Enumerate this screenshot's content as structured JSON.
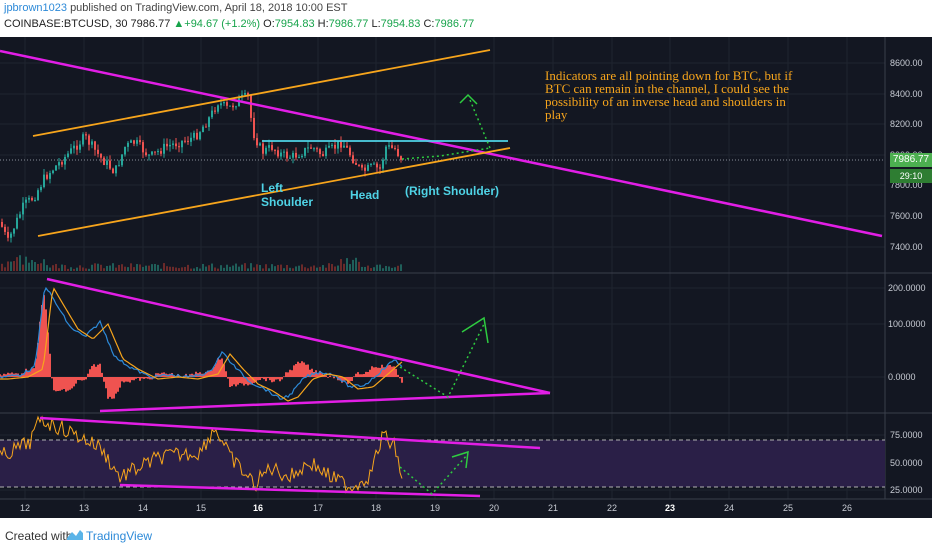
{
  "header": {
    "author": "jpbrown1023",
    "published": "published on TradingView.com, April 18, 2018 10:00 EST"
  },
  "ticker": {
    "symbol": "COINBASE:BTCUSD, 30",
    "last": "7986.77",
    "change": "+94.67 (+1.2%)",
    "open_label": "O:",
    "open": "7954.83",
    "high_label": "H:",
    "high": "7986.77",
    "low_label": "L:",
    "low": "7954.83",
    "close_label": "C:",
    "close": "7986.77"
  },
  "annotations": {
    "note": "Indicators are all pointing down for BTC, but if BTC can remain in the channel, I could see the possibility of an inverse head and shoulders in play",
    "left_shoulder": "Left Shoulder",
    "head": "Head",
    "right_shoulder": "(Right Shoulder)"
  },
  "price_tags": {
    "price": "7986.77",
    "countdown": "29:10"
  },
  "price_axis": [
    "8600.00",
    "8400.00",
    "8200.00",
    "8000.00",
    "7800.00",
    "7600.00",
    "7400.00"
  ],
  "macd_axis": [
    "200.0000",
    "100.0000",
    "0.0000"
  ],
  "rsi_axis": [
    "75.0000",
    "50.0000",
    "25.0000"
  ],
  "time_axis": [
    "12",
    "13",
    "14",
    "15",
    "16",
    "17",
    "18",
    "19",
    "20",
    "21",
    "22",
    "23",
    "24",
    "25",
    "26"
  ],
  "colors": {
    "background": "#131722",
    "up_candle": "#26a69a",
    "down_candle": "#ef5350",
    "trendline_magenta": "#e21ee6",
    "channel_orange": "#f7a51c",
    "neckline_cyan": "#4fd3e6",
    "projection_green": "#2ecc40"
  },
  "footer": {
    "created_with": "Created with",
    "brand": "TradingView"
  }
}
